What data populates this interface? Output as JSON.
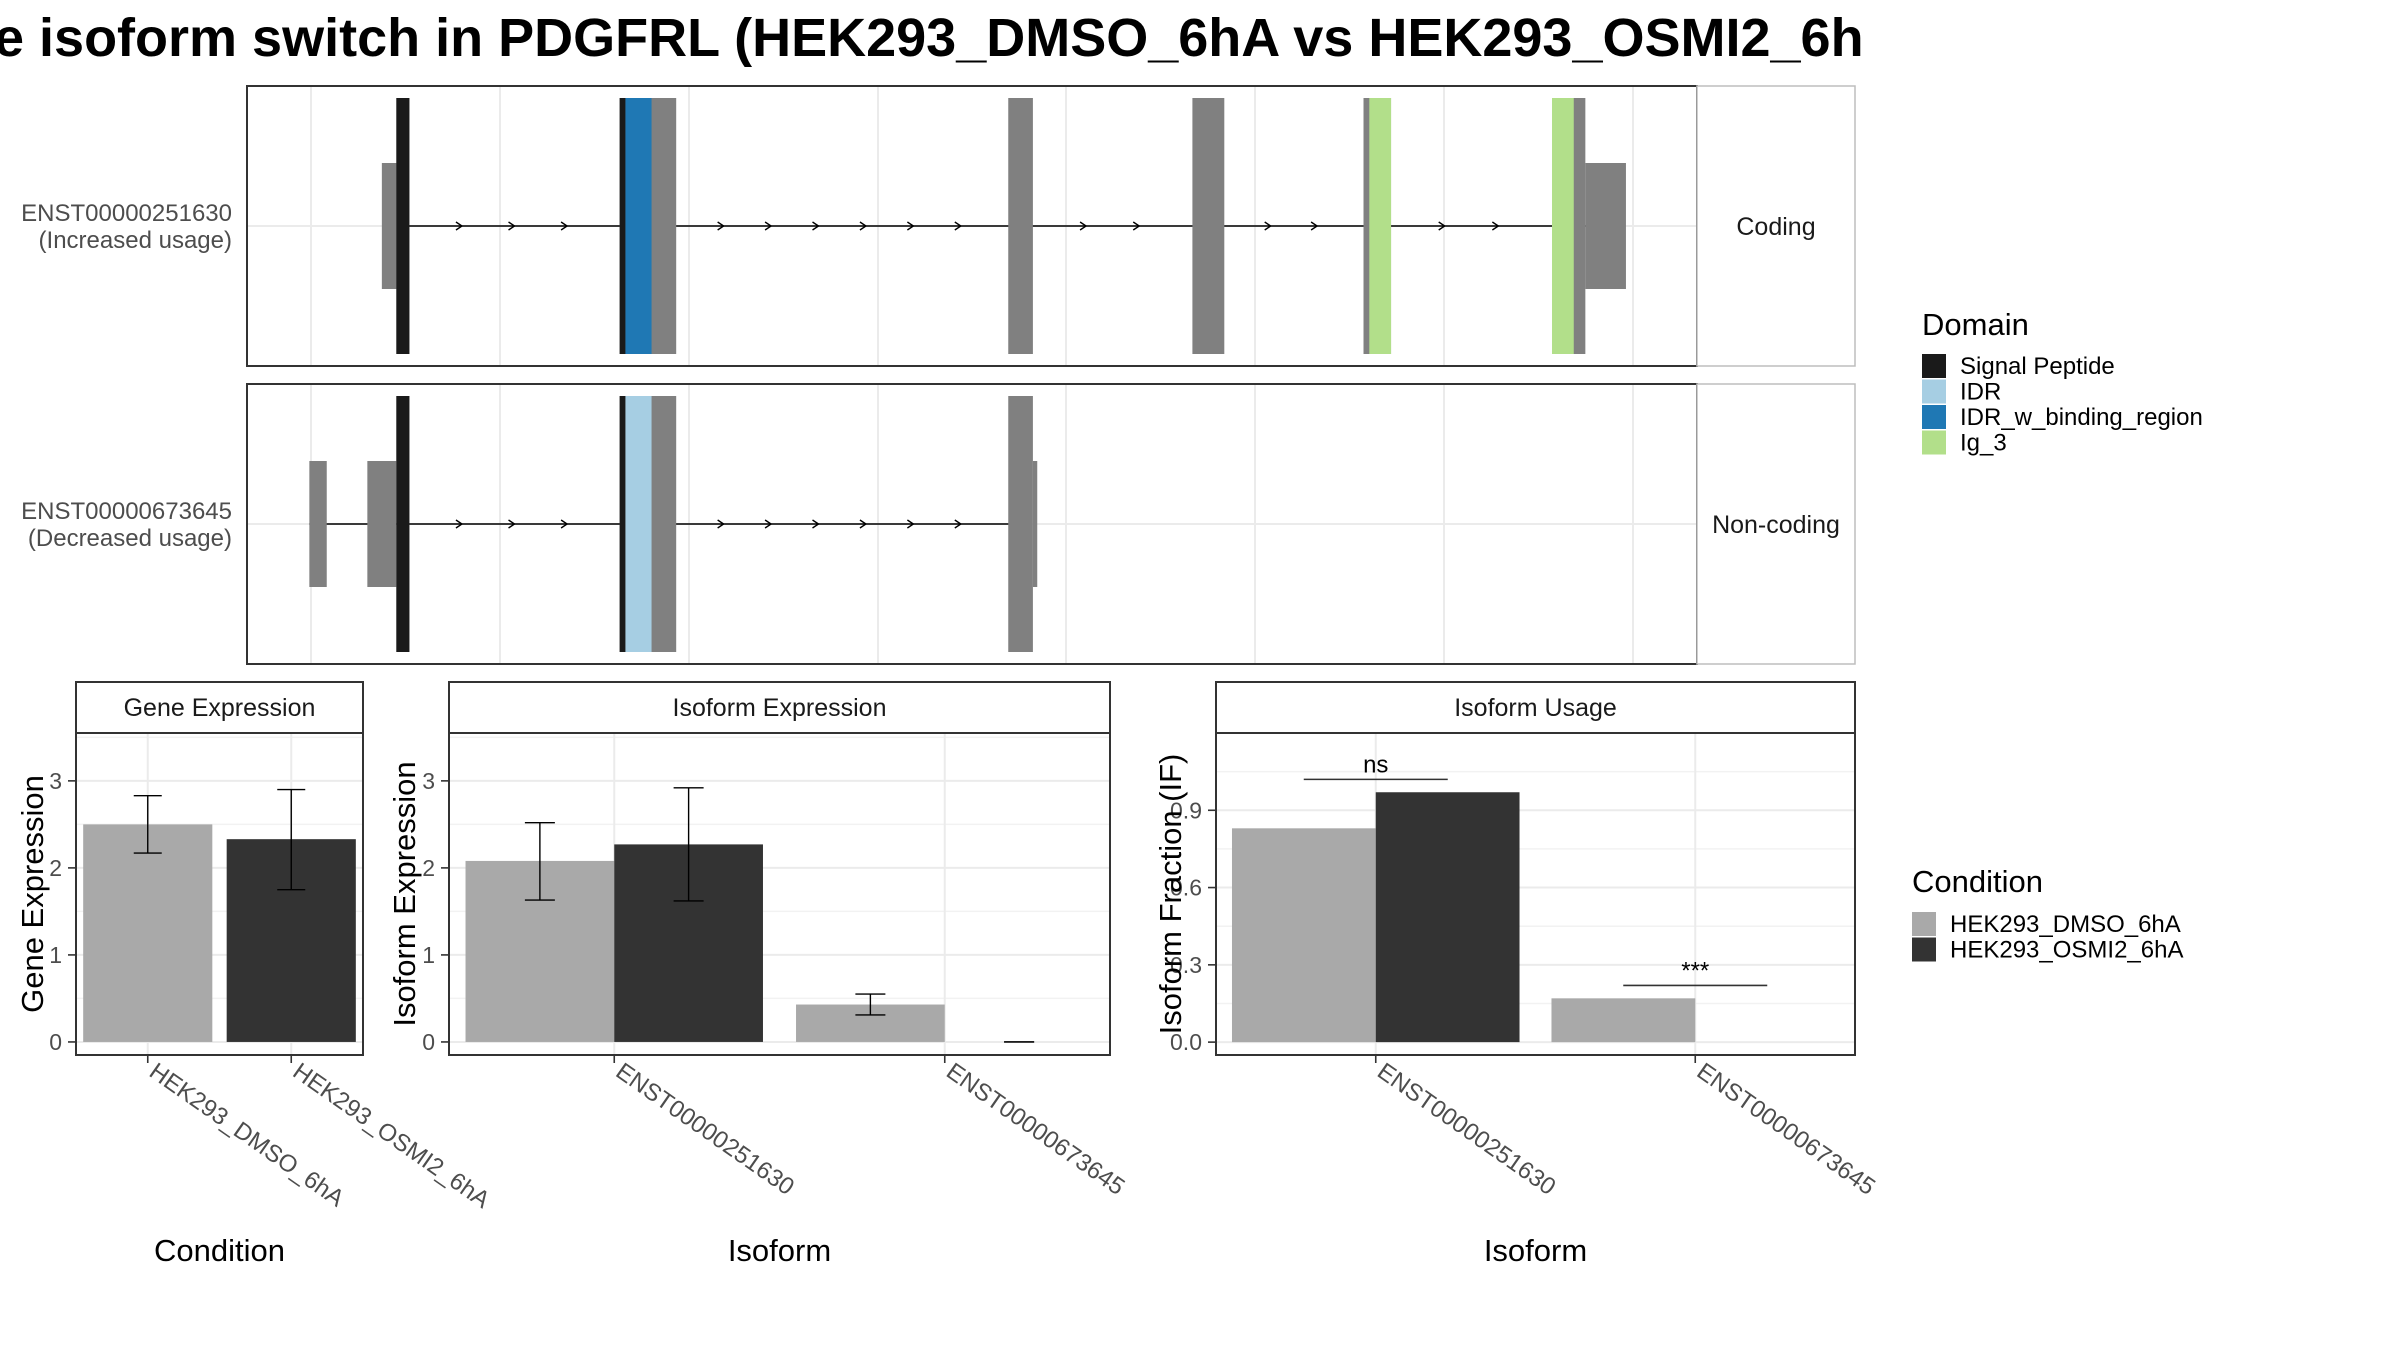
{
  "title": "e isoform switch in PDGFRL (HEK293_DMSO_6hA vs HEK293_OSMI2_6h",
  "colors": {
    "Signal Peptide": "#1a1a1a",
    "IDR": "#a6cee3",
    "IDR_w_binding_region": "#1f78b4",
    "Ig_3": "#b2df8a",
    "exon": "#808080",
    "HEK293_DMSO_6hA": "#a9a9a9",
    "HEK293_OSMI2_6hA": "#333333"
  },
  "domain_legend": {
    "title": "Domain",
    "items": [
      "Signal Peptide",
      "IDR",
      "IDR_w_binding_region",
      "Ig_3"
    ]
  },
  "condition_legend": {
    "title": "Condition",
    "items": [
      "HEK293_DMSO_6hA",
      "HEK293_OSMI2_6hA"
    ]
  },
  "chart_data": [
    {
      "type": "transcript-structure",
      "xlim": [
        0,
        100
      ],
      "tracks": [
        {
          "id": "ENST00000251630",
          "label_line1": "ENST00000251630",
          "label_line2": "(Increased usage)",
          "strip": "Coding",
          "intron": [
            10.8,
            92.5
          ],
          "exons": [
            {
              "start": 9.3,
              "end": 10.8,
              "cds": false
            },
            {
              "start": 10.3,
              "end": 11.2,
              "cds": true
            },
            {
              "start": 25.7,
              "end": 29.6,
              "cds": true
            },
            {
              "start": 52.5,
              "end": 54.2,
              "cds": true
            },
            {
              "start": 65.2,
              "end": 67.4,
              "cds": true
            },
            {
              "start": 77.0,
              "end": 78.9,
              "cds": true
            },
            {
              "start": 90.0,
              "end": 92.3,
              "cds": true
            },
            {
              "start": 92.3,
              "end": 95.1,
              "cds": false
            }
          ],
          "domains": [
            {
              "name": "Signal Peptide",
              "start": 10.3,
              "end": 11.2
            },
            {
              "name": "Signal Peptide",
              "start": 25.7,
              "end": 26.1
            },
            {
              "name": "IDR_w_binding_region",
              "start": 26.1,
              "end": 27.9
            },
            {
              "name": "Ig_3",
              "start": 77.4,
              "end": 78.9
            },
            {
              "name": "Ig_3",
              "start": 90.0,
              "end": 91.5
            }
          ]
        },
        {
          "id": "ENST00000673645",
          "label_line1": "ENST00000673645",
          "label_line2": "(Decreased usage)",
          "strip": "Non-coding",
          "intron": [
            4.3,
            52.8
          ],
          "exons": [
            {
              "start": 4.3,
              "end": 5.5,
              "cds": false
            },
            {
              "start": 8.3,
              "end": 10.3,
              "cds": false
            },
            {
              "start": 10.3,
              "end": 11.2,
              "cds": true
            },
            {
              "start": 25.7,
              "end": 29.6,
              "cds": true
            },
            {
              "start": 52.5,
              "end": 54.2,
              "cds": true
            },
            {
              "start": 54.2,
              "end": 54.5,
              "cds": false
            }
          ],
          "domains": [
            {
              "name": "Signal Peptide",
              "start": 10.3,
              "end": 11.2
            },
            {
              "name": "Signal Peptide",
              "start": 25.7,
              "end": 26.1
            },
            {
              "name": "IDR",
              "start": 26.1,
              "end": 27.9
            }
          ]
        }
      ]
    },
    {
      "type": "bar",
      "title": "Gene Expression",
      "xlabel": "Condition",
      "ylabel": "Gene Expression",
      "categories": [
        "HEK293_DMSO_6hA",
        "HEK293_OSMI2_6hA"
      ],
      "values": [
        2.5,
        2.33
      ],
      "error_low": [
        2.17,
        1.75
      ],
      "error_high": [
        2.83,
        2.9
      ],
      "ylim": [
        -0.15,
        3.55
      ],
      "yticks": [
        0,
        1,
        2,
        3
      ],
      "yticklabels": [
        "0",
        "1",
        "2",
        "3"
      ]
    },
    {
      "type": "bar",
      "title": "Isoform Expression",
      "xlabel": "Isoform",
      "ylabel": "Isoform Expression",
      "categories": [
        "ENST00000251630",
        "ENST00000673645"
      ],
      "series": [
        {
          "name": "HEK293_DMSO_6hA",
          "values": [
            2.08,
            0.43
          ],
          "error_low": [
            1.63,
            0.31
          ],
          "error_high": [
            2.52,
            0.55
          ]
        },
        {
          "name": "HEK293_OSMI2_6hA",
          "values": [
            2.27,
            0.0
          ],
          "error_low": [
            1.62,
            0.0
          ],
          "error_high": [
            2.92,
            0.0
          ]
        }
      ],
      "ylim": [
        -0.15,
        3.55
      ],
      "yticks": [
        0,
        1,
        2,
        3
      ],
      "yticklabels": [
        "0",
        "1",
        "2",
        "3"
      ]
    },
    {
      "type": "bar",
      "title": "Isoform Usage",
      "xlabel": "Isoform",
      "ylabel": "Isoform Fraction (IF)",
      "categories": [
        "ENST00000251630",
        "ENST00000673645"
      ],
      "series": [
        {
          "name": "HEK293_DMSO_6hA",
          "values": [
            0.83,
            0.17
          ]
        },
        {
          "name": "HEK293_OSMI2_6hA",
          "values": [
            0.97,
            0.0
          ]
        }
      ],
      "ylim": [
        -0.05,
        1.2
      ],
      "yticks": [
        0,
        0.3,
        0.6,
        0.9
      ],
      "yticklabels": [
        "0.0",
        "0.3",
        "0.6",
        "0.9"
      ],
      "significance": [
        {
          "label": "ns",
          "y": 1.02
        },
        {
          "label": "***",
          "y": 0.22
        }
      ]
    }
  ]
}
